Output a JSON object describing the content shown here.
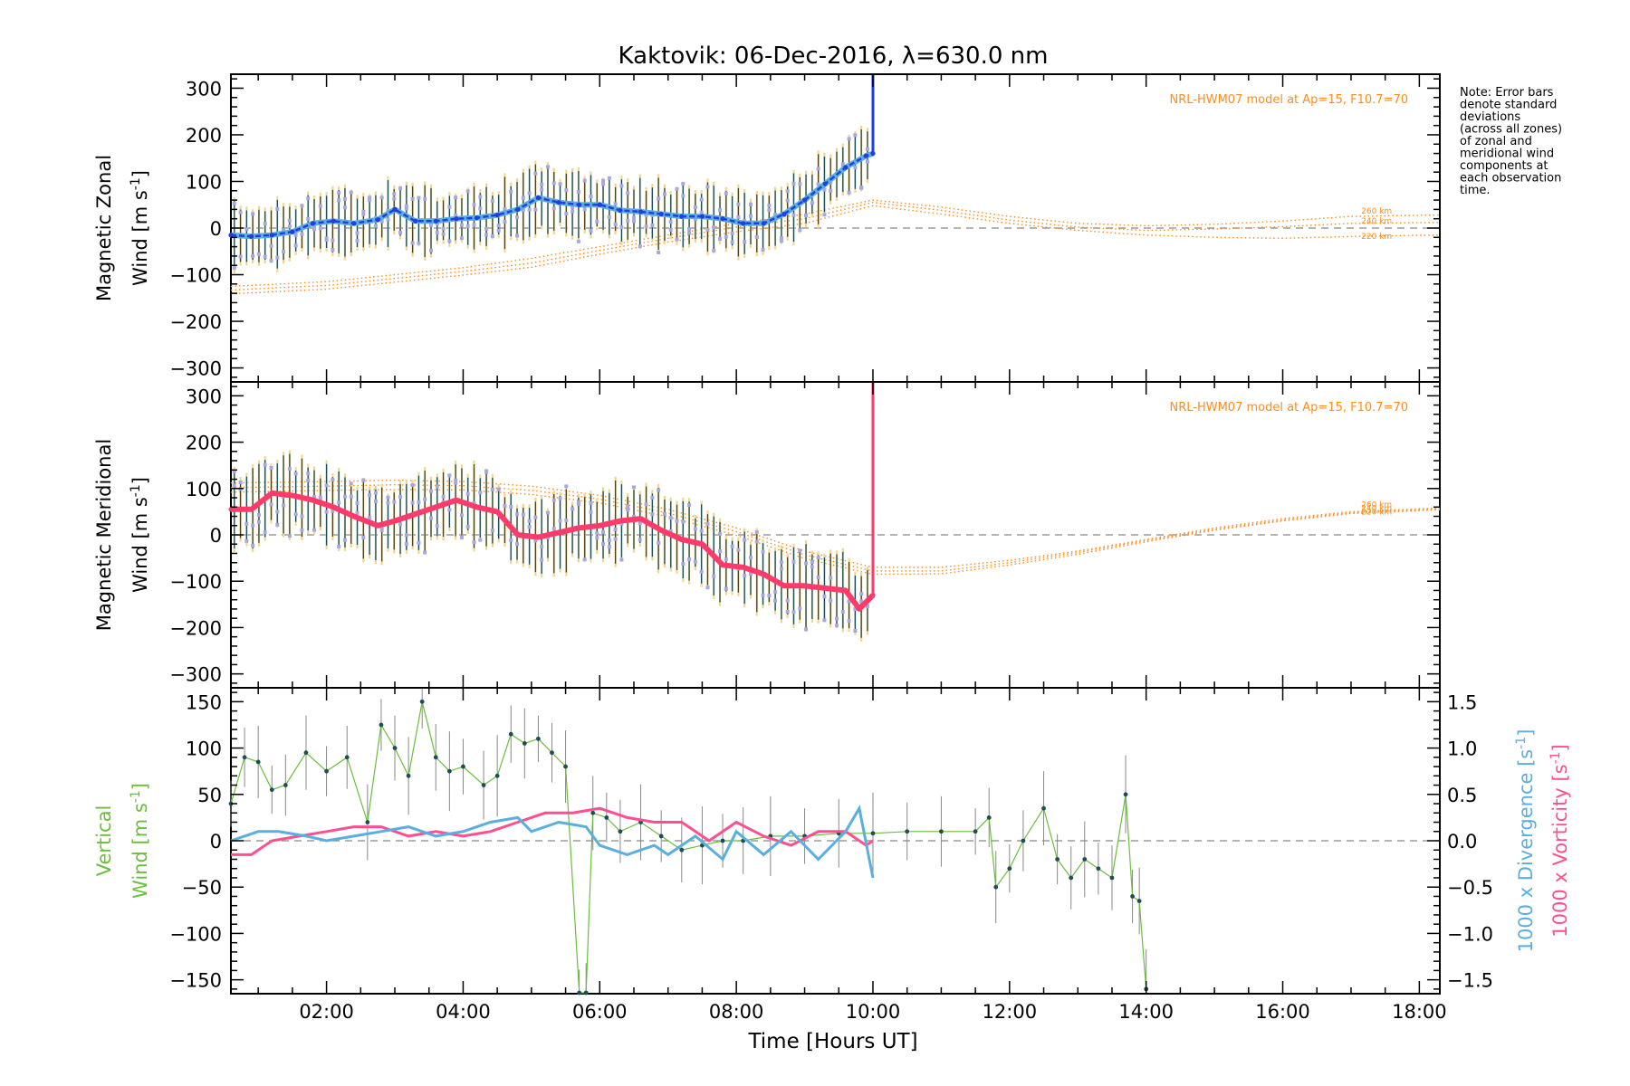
{
  "title": "Kaktovik: 06-Dec-2016, λ=630.0 nm",
  "note": "Note: Error bars denote standard deviations (across all zones) of zonal and meridional wind components at each observation time.",
  "note_lines": [
    "Note: Error bars",
    "denote standard",
    "deviations",
    "(across all zones)",
    "of zonal and",
    "meridional wind",
    "components at",
    "each observation",
    "time."
  ],
  "model_label": "NRL-HWM07 model at Ap=15, F10.7=70",
  "altitude_labels": [
    "260 km",
    "240 km",
    "220 km"
  ],
  "x_axis": {
    "label": "Time [Hours UT]",
    "tick_labels": [
      "02:00",
      "04:00",
      "06:00",
      "08:00",
      "10:00",
      "12:00",
      "14:00",
      "16:00",
      "18:00"
    ]
  },
  "panels": {
    "zonal": {
      "ylabel_line1": "Magnetic Zonal",
      "ylabel_line2": "Wind [m s",
      "ylabel_sup": "-1",
      "ylabel_close": "]"
    },
    "meridional": {
      "ylabel_line1": "Magnetic Meridional",
      "ylabel_line2": "Wind [m s",
      "ylabel_sup": "-1",
      "ylabel_close": "]"
    },
    "vertical": {
      "ylabel_line1": "Vertical",
      "ylabel_line2": "Wind [m s",
      "ylabel_sup": "-1",
      "ylabel_close": "]",
      "right_label_div": "1000 x Divergence [s",
      "right_label_vort": "1000 x Vorticity [s",
      "right_sup": "-1",
      "right_close": "]"
    }
  },
  "colors": {
    "zonal_line": "#1f3fe0",
    "zonal_light": "#5aaee0",
    "meridional_line": "#ff3b6b",
    "vertical": "#6abf3a",
    "divergence": "#5aaee0",
    "vorticity": "#ff4f8f",
    "model": "#ff8c1a",
    "errorbar_dark": "#1d4e55",
    "errorbar_pale": "#f5d58a",
    "scatter": "#a8a8e0"
  },
  "chart_data": [
    {
      "type": "line",
      "panel": "zonal",
      "xlabel": "",
      "ylabel": "Magnetic Zonal Wind [m s^-1]",
      "xlim": [
        0.6,
        18.3
      ],
      "ylim": [
        -330,
        330
      ],
      "yticks": [
        -300,
        -200,
        -100,
        0,
        100,
        200,
        300
      ],
      "series": [
        {
          "x": [
            0.6,
            0.9,
            1.2,
            1.5,
            1.8,
            2.1,
            2.4,
            2.75,
            3.0,
            3.3,
            3.6,
            3.9,
            4.2,
            4.5,
            4.8,
            5.1,
            5.4,
            5.7,
            6.0,
            6.3,
            6.6,
            6.9,
            7.2,
            7.5,
            7.8,
            8.1,
            8.4,
            8.7,
            9.0,
            9.3,
            9.6,
            9.9,
            10.0
          ],
          "y": [
            -15,
            -18,
            -15,
            -8,
            10,
            15,
            10,
            18,
            40,
            15,
            15,
            20,
            22,
            28,
            40,
            65,
            55,
            50,
            50,
            38,
            35,
            30,
            25,
            25,
            20,
            10,
            10,
            30,
            60,
            95,
            130,
            155,
            160
          ]
        }
      ],
      "error_bar_std": 60,
      "spike_at": 10.0,
      "model": [
        {
          "x": [
            0.6,
            2,
            3,
            4,
            5,
            6,
            7,
            8,
            9,
            10,
            11,
            12,
            13,
            14,
            15,
            16,
            17,
            18.3
          ],
          "y": [
            -125,
            -115,
            -100,
            -85,
            -65,
            -40,
            -15,
            10,
            30,
            60,
            45,
            25,
            10,
            5,
            8,
            15,
            25,
            28
          ]
        },
        {
          "x": [
            0.6,
            2,
            3,
            4,
            5,
            6,
            7,
            8,
            9,
            10,
            11,
            12,
            13,
            14,
            15,
            16,
            17,
            18.3
          ],
          "y": [
            -133,
            -123,
            -108,
            -93,
            -75,
            -48,
            -22,
            2,
            20,
            55,
            38,
            17,
            2,
            -5,
            -2,
            3,
            10,
            12
          ]
        },
        {
          "x": [
            0.6,
            2,
            3,
            4,
            5,
            6,
            7,
            8,
            9,
            10,
            11,
            12,
            13,
            14,
            15,
            16,
            17,
            18.3
          ],
          "y": [
            -141,
            -131,
            -116,
            -101,
            -84,
            -56,
            -30,
            -8,
            10,
            48,
            30,
            10,
            -5,
            -15,
            -20,
            -22,
            -18,
            -15
          ]
        }
      ]
    },
    {
      "type": "line",
      "panel": "meridional",
      "xlabel": "",
      "ylabel": "Magnetic Meridional Wind [m s^-1]",
      "xlim": [
        0.6,
        18.3
      ],
      "ylim": [
        -330,
        330
      ],
      "yticks": [
        -300,
        -200,
        -100,
        0,
        100,
        200,
        300
      ],
      "series": [
        {
          "x": [
            0.6,
            0.9,
            1.2,
            1.5,
            1.8,
            2.1,
            2.4,
            2.75,
            3.0,
            3.3,
            3.6,
            3.9,
            4.2,
            4.5,
            4.8,
            5.1,
            5.4,
            5.7,
            6.0,
            6.3,
            6.6,
            6.9,
            7.2,
            7.5,
            7.8,
            8.1,
            8.4,
            8.7,
            9.0,
            9.3,
            9.6,
            9.8,
            10.0
          ],
          "y": [
            55,
            55,
            90,
            85,
            75,
            60,
            40,
            20,
            30,
            45,
            60,
            75,
            60,
            50,
            0,
            -5,
            5,
            15,
            20,
            30,
            35,
            10,
            -10,
            -20,
            -65,
            -70,
            -85,
            -110,
            -110,
            -115,
            -120,
            -160,
            -130
          ]
        }
      ],
      "error_bar_std": 70,
      "spike_at": 10.0,
      "model": [
        {
          "x": [
            0.6,
            2,
            3,
            4,
            5,
            6,
            7,
            8,
            9,
            10,
            11,
            12,
            13,
            14,
            15,
            16,
            17,
            18.3
          ],
          "y": [
            112,
            115,
            118,
            115,
            105,
            85,
            55,
            15,
            -35,
            -70,
            -70,
            -55,
            -35,
            -10,
            15,
            35,
            50,
            58
          ]
        },
        {
          "x": [
            0.6,
            2,
            3,
            4,
            5,
            6,
            7,
            8,
            9,
            10,
            11,
            12,
            13,
            14,
            15,
            16,
            17,
            18.3
          ],
          "y": [
            102,
            105,
            108,
            106,
            96,
            77,
            47,
            7,
            -43,
            -78,
            -78,
            -60,
            -38,
            -12,
            12,
            32,
            48,
            56
          ]
        },
        {
          "x": [
            0.6,
            2,
            3,
            4,
            5,
            6,
            7,
            8,
            9,
            10,
            11,
            12,
            13,
            14,
            15,
            16,
            17,
            18.3
          ],
          "y": [
            92,
            96,
            98,
            97,
            87,
            69,
            39,
            -1,
            -51,
            -85,
            -84,
            -65,
            -42,
            -15,
            10,
            30,
            46,
            54
          ]
        }
      ]
    },
    {
      "type": "line",
      "panel": "vertical",
      "xlabel": "Time [Hours UT]",
      "ylabel": "Vertical Wind [m s^-1]",
      "xlim": [
        0.6,
        18.3
      ],
      "ylim": [
        -165,
        165
      ],
      "yticks": [
        -150,
        -100,
        -50,
        0,
        50,
        100,
        150
      ],
      "y2lim": [
        -1.65,
        1.65
      ],
      "y2ticks": [
        -1.5,
        -1.0,
        -0.5,
        0.0,
        0.5,
        1.0,
        1.5
      ],
      "series": [
        {
          "name": "Vertical",
          "axis": "left",
          "x": [
            0.6,
            0.8,
            1.0,
            1.2,
            1.4,
            1.7,
            2.0,
            2.3,
            2.6,
            2.8,
            3.0,
            3.2,
            3.4,
            3.6,
            3.8,
            4.0,
            4.3,
            4.5,
            4.7,
            4.9,
            5.1,
            5.3,
            5.5,
            5.7,
            5.8,
            5.9,
            6.1,
            6.3,
            6.6,
            6.9,
            7.2,
            7.5,
            7.8,
            8.1,
            8.5,
            9.0,
            9.5,
            10.0,
            10.5,
            11.0,
            11.5,
            11.7,
            11.8,
            12.0,
            12.2,
            12.5,
            12.7,
            12.9,
            13.1,
            13.3,
            13.5,
            13.7,
            13.8,
            13.9,
            14.0
          ],
          "y": [
            40,
            90,
            85,
            55,
            60,
            95,
            75,
            90,
            20,
            125,
            100,
            70,
            150,
            90,
            75,
            80,
            60,
            70,
            115,
            105,
            110,
            95,
            80,
            -165,
            -165,
            30,
            25,
            10,
            20,
            5,
            -10,
            -5,
            0,
            0,
            5,
            5,
            8,
            8,
            10,
            10,
            10,
            25,
            -50,
            -30,
            0,
            35,
            -20,
            -40,
            -20,
            -30,
            -40,
            50,
            -60,
            -65,
            -160
          ]
        },
        {
          "name": "1000 x Divergence",
          "axis": "right",
          "x": [
            0.6,
            0.8,
            1.0,
            1.3,
            1.7,
            2.0,
            2.4,
            2.8,
            3.2,
            3.6,
            4.0,
            4.4,
            4.8,
            5.0,
            5.4,
            5.8,
            6.0,
            6.4,
            6.8,
            7.0,
            7.4,
            7.8,
            8.0,
            8.4,
            8.8,
            9.2,
            9.6,
            9.8,
            10.0
          ],
          "y": [
            0.0,
            0.05,
            0.1,
            0.1,
            0.05,
            0.0,
            0.05,
            0.1,
            0.15,
            0.05,
            0.1,
            0.2,
            0.25,
            0.1,
            0.2,
            0.15,
            -0.05,
            -0.15,
            -0.05,
            -0.15,
            0.05,
            -0.2,
            0.1,
            -0.15,
            0.1,
            -0.2,
            0.1,
            0.35,
            -0.4
          ]
        },
        {
          "name": "1000 x Vorticity",
          "axis": "right",
          "x": [
            0.6,
            0.9,
            1.2,
            1.6,
            2.0,
            2.4,
            2.8,
            3.2,
            3.6,
            4.0,
            4.4,
            4.8,
            5.2,
            5.6,
            6.0,
            6.4,
            6.8,
            7.2,
            7.6,
            8.0,
            8.4,
            8.8,
            9.2,
            9.6,
            9.9,
            10.0
          ],
          "y": [
            -0.15,
            -0.15,
            0.0,
            0.05,
            0.1,
            0.15,
            0.15,
            0.05,
            0.1,
            0.05,
            0.1,
            0.2,
            0.3,
            0.3,
            0.35,
            0.25,
            0.2,
            0.2,
            0.0,
            0.2,
            0.05,
            -0.05,
            0.1,
            0.1,
            -0.05,
            0.0
          ]
        }
      ]
    }
  ]
}
